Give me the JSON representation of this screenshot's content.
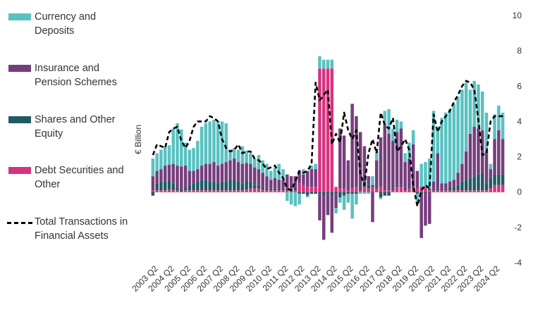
{
  "chart_data": {
    "type": "bar",
    "ylabel": "€ Billion",
    "ylim": [
      -4,
      10
    ],
    "yticks": [
      -4,
      -2,
      0,
      2,
      4,
      6,
      8,
      10
    ],
    "x_tick_labels": [
      "2003 Q2",
      "2004 Q2",
      "2005 Q2",
      "2006 Q2",
      "2007 Q2",
      "2008 Q2",
      "2009 Q2",
      "2010 Q2",
      "2011 Q2",
      "2012 Q2",
      "2013 Q2",
      "2014 Q2",
      "2015 Q2",
      "2016 Q2",
      "2017 Q2",
      "2018 Q2",
      "2019 Q2",
      "2020 Q2",
      "2021 Q2",
      "2022 Q2",
      "2023 Q2",
      "2024 Q2"
    ],
    "categories": [
      "2003 Q1",
      "2003 Q2",
      "2003 Q3",
      "2003 Q4",
      "2004 Q1",
      "2004 Q2",
      "2004 Q3",
      "2004 Q4",
      "2005 Q1",
      "2005 Q2",
      "2005 Q3",
      "2005 Q4",
      "2006 Q1",
      "2006 Q2",
      "2006 Q3",
      "2006 Q4",
      "2007 Q1",
      "2007 Q2",
      "2007 Q3",
      "2007 Q4",
      "2008 Q1",
      "2008 Q2",
      "2008 Q3",
      "2008 Q4",
      "2009 Q1",
      "2009 Q2",
      "2009 Q3",
      "2009 Q4",
      "2010 Q1",
      "2010 Q2",
      "2010 Q3",
      "2010 Q4",
      "2011 Q1",
      "2011 Q2",
      "2011 Q3",
      "2011 Q4",
      "2012 Q1",
      "2012 Q2",
      "2012 Q3",
      "2012 Q4",
      "2013 Q1",
      "2013 Q2",
      "2013 Q3",
      "2013 Q4",
      "2014 Q1",
      "2014 Q2",
      "2014 Q3",
      "2014 Q4",
      "2015 Q1",
      "2015 Q2",
      "2015 Q3",
      "2015 Q4",
      "2016 Q1",
      "2016 Q2",
      "2016 Q3",
      "2016 Q4",
      "2017 Q1",
      "2017 Q2",
      "2017 Q3",
      "2017 Q4",
      "2018 Q1",
      "2018 Q2",
      "2018 Q3",
      "2018 Q4",
      "2019 Q1",
      "2019 Q2",
      "2019 Q3",
      "2019 Q4",
      "2020 Q1",
      "2020 Q2",
      "2020 Q3",
      "2020 Q4",
      "2021 Q1",
      "2021 Q2",
      "2021 Q3",
      "2021 Q4",
      "2022 Q1",
      "2022 Q2",
      "2022 Q3",
      "2022 Q4",
      "2023 Q1",
      "2023 Q2",
      "2023 Q3",
      "2023 Q4",
      "2024 Q1",
      "2024 Q2",
      "2024 Q3"
    ],
    "series": [
      {
        "name": "Debt Securities and Other",
        "color": "#d6337f",
        "values": [
          0.1,
          0.1,
          0.1,
          0.1,
          0.15,
          0.1,
          0.1,
          0.05,
          0.1,
          0.1,
          0.1,
          0.1,
          0.1,
          0.1,
          0.1,
          0.1,
          0.1,
          0.1,
          0.1,
          0.1,
          0.1,
          0.1,
          0.1,
          0.15,
          0.2,
          0.2,
          0.2,
          0.15,
          0.1,
          0.1,
          0.1,
          0.1,
          0.1,
          0.1,
          0.1,
          0.1,
          0.5,
          0.4,
          0.3,
          0.3,
          0.3,
          7.0,
          7.0,
          7.0,
          7.0,
          0.3,
          0.2,
          0.2,
          0.1,
          0.2,
          0.3,
          0.1,
          0.3,
          0.2,
          0.3,
          0.2,
          0.3,
          0.1,
          0.1,
          0.1,
          0.3,
          0.3,
          0.1,
          0.2,
          0.2,
          0.2,
          0.3,
          0.3,
          0.1,
          0.1,
          0.1,
          0.1,
          0.1,
          0.1,
          0.1,
          0.1,
          0.1,
          0.1,
          0.1,
          0.1,
          0.1,
          0.1,
          0.1,
          0.2,
          0.4,
          0.4,
          0.4
        ]
      },
      {
        "name": "Shares and Other Equity",
        "color": "#215a63",
        "values": [
          -0.2,
          0.4,
          0.5,
          0.5,
          0.5,
          0.4,
          0.2,
          0.1,
          0.2,
          0.3,
          0.4,
          0.5,
          0.6,
          0.6,
          0.5,
          0.5,
          0.4,
          0.5,
          0.5,
          0.6,
          0.6,
          0.5,
          0.4,
          0.5,
          0.4,
          0.2,
          0.2,
          0.15,
          0.1,
          0.1,
          0.1,
          0.1,
          0.1,
          0.1,
          0.1,
          0.2,
          -0.1,
          -0.1,
          -0.2,
          -0.1,
          -0.1,
          -0.1,
          -0.2,
          -0.1,
          -0.2,
          -0.1,
          -0.3,
          -0.2,
          -0.1,
          -0.1,
          -0.1,
          0.1,
          0.3,
          0.2,
          0.1,
          0.1,
          -0.3,
          -0.2,
          -0.2,
          0.1,
          0.1,
          0.1,
          0.1,
          0.1,
          0.1,
          -0.1,
          -0.1,
          -0.1,
          0.1,
          0.1,
          0.1,
          0.1,
          0.1,
          0.2,
          0.2,
          0.3,
          0.5,
          0.6,
          0.7,
          0.8,
          0.9,
          1.0,
          0.4,
          0.6,
          0.6,
          0.6,
          0.6
        ]
      },
      {
        "name": "Insurance and Pension Schemes",
        "color": "#763d7c",
        "values": [
          0.8,
          0.7,
          0.7,
          0.9,
          0.9,
          1.1,
          1.2,
          1.3,
          1.2,
          0.8,
          0.7,
          0.7,
          0.8,
          0.9,
          1.0,
          1.1,
          1.0,
          1.0,
          1.1,
          1.1,
          1.2,
          1.1,
          1.1,
          1.0,
          1.0,
          1.0,
          0.9,
          0.8,
          0.7,
          0.5,
          0.6,
          0.5,
          0.5,
          0.8,
          0.7,
          0.6,
          0.7,
          0.6,
          0.9,
          1.0,
          1.0,
          -1.5,
          -2.5,
          -1.2,
          -2.1,
          -0.8,
          3.4,
          3.0,
          1.7,
          4.8,
          4.0,
          3.2,
          2.0,
          0.5,
          -1.7,
          1.5,
          2.8,
          3.7,
          3.2,
          2.7,
          3.0,
          3.2,
          1.5,
          1.6,
          2.4,
          1.0,
          -2.5,
          -1.8,
          -1.8,
          0.4,
          2.0,
          0.3,
          0.3,
          0.3,
          0.4,
          0.7,
          1.0,
          1.6,
          2.5,
          2.8,
          2.6,
          2.4,
          1.8,
          0.5,
          2.0,
          2.5,
          2.0
        ]
      },
      {
        "name": "Currency and Deposits",
        "color": "#5ac1c1",
        "values": [
          1.0,
          1.0,
          1.1,
          1.1,
          1.1,
          2.0,
          2.4,
          2.1,
          1.3,
          1.2,
          1.3,
          1.6,
          2.2,
          2.3,
          2.4,
          2.4,
          2.5,
          2.4,
          2.2,
          0.6,
          0.6,
          0.7,
          1.0,
          0.7,
          0.6,
          0.5,
          0.8,
          0.7,
          0.7,
          0.5,
          0.6,
          0.9,
          0.6,
          -0.5,
          -0.7,
          -0.8,
          -0.6,
          0.3,
          -0.1,
          0.2,
          0.3,
          0.7,
          0.5,
          0.5,
          0.5,
          -0.3,
          -0.3,
          -0.8,
          -0.5,
          -1.4,
          -0.6,
          -0.1,
          -0.1,
          -0.1,
          0.5,
          0.5,
          -0.1,
          0.8,
          1.4,
          0.7,
          0.7,
          0.4,
          0.5,
          0.9,
          0.8,
          -0.5,
          1.3,
          1.4,
          1.7,
          4.0,
          1.3,
          3.7,
          4.0,
          4.1,
          4.3,
          4.3,
          4.2,
          3.9,
          2.5,
          2.6,
          2.5,
          2.2,
          2.2,
          0.3,
          1.4,
          1.4,
          1.5
        ]
      }
    ],
    "total": {
      "name": "Total Transactions in Financial Assets",
      "color": "#000000",
      "values": [
        2.1,
        2.7,
        2.6,
        2.5,
        3.4,
        3.6,
        3.7,
        2.9,
        2.5,
        2.9,
        3.7,
        4.0,
        4.0,
        4.0,
        4.3,
        4.2,
        4.0,
        3.0,
        2.5,
        2.3,
        2.4,
        2.7,
        2.2,
        2.3,
        2.3,
        1.9,
        1.8,
        1.6,
        1.3,
        1.4,
        1.5,
        1.1,
        0.8,
        0.2,
        0.1,
        0.6,
        1.2,
        1.1,
        1.2,
        1.6,
        6.2,
        5.2,
        5.5,
        5.8,
        2.7,
        3.3,
        2.8,
        4.5,
        3.5,
        3.0,
        3.5,
        1.0,
        0.4,
        2.2,
        3.0,
        2.2,
        4.5,
        3.8,
        3.6,
        4.2,
        2.3,
        2.6,
        3.0,
        2.4,
        0.4,
        -0.8,
        0.1,
        0.4,
        0.2,
        4.4,
        3.4,
        4.0,
        4.3,
        4.6,
        5.1,
        5.5,
        6.0,
        6.3,
        6.2,
        5.8,
        4.1,
        2.1,
        2.2,
        4.0,
        4.3,
        4.3,
        4.3
      ]
    }
  },
  "legend": [
    {
      "label": "Currency and Deposits",
      "color": "#5ac1c1",
      "kind": "bar"
    },
    {
      "label": "Insurance and Pension Schemes",
      "color": "#763d7c",
      "kind": "bar"
    },
    {
      "label": "Shares and Other Equity",
      "color": "#215a63",
      "kind": "bar"
    },
    {
      "label": "Debt Securities and Other",
      "color": "#d6337f",
      "kind": "bar"
    },
    {
      "label": "Total Transactions in Financial Assets",
      "color": "#000000",
      "kind": "dashed-line"
    }
  ]
}
